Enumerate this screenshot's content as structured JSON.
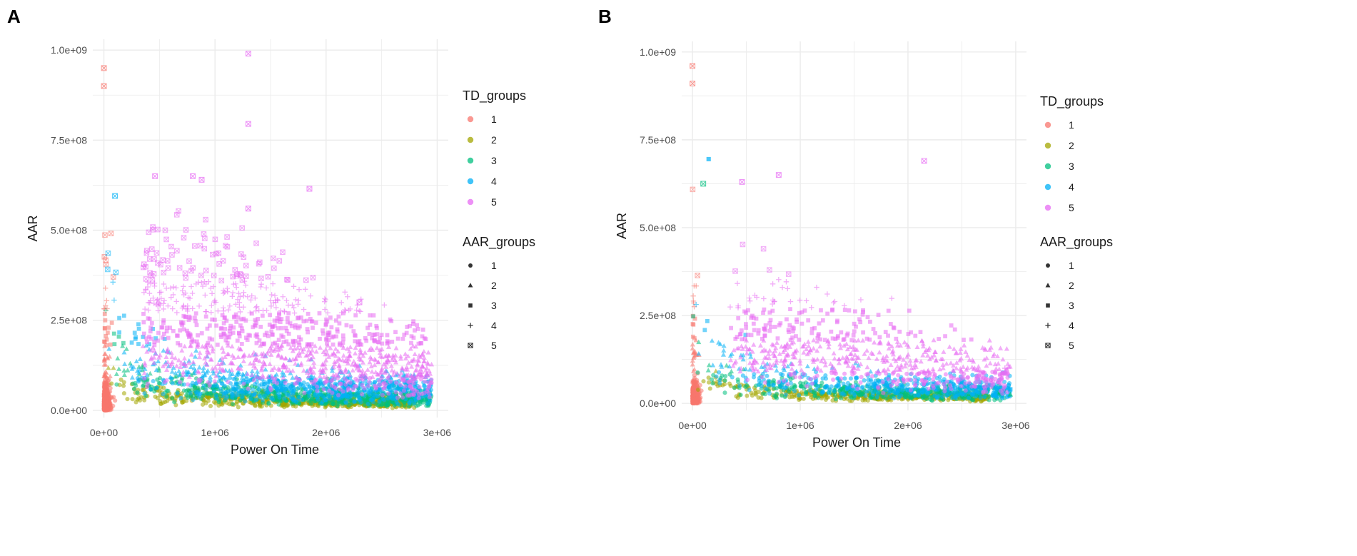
{
  "panels": [
    {
      "label": "A",
      "chart_data": {
        "type": "scatter",
        "title": "",
        "xlabel": "Power On Time",
        "ylabel": "AAR",
        "xlim": [
          -100000,
          3100000
        ],
        "ylim": [
          -20000000,
          1030000000
        ],
        "xticks": [
          0,
          1000000,
          2000000,
          3000000
        ],
        "xtick_labels": [
          "0e+00",
          "1e+06",
          "2e+06",
          "3e+06"
        ],
        "yticks": [
          0,
          250000000,
          500000000,
          750000000,
          1000000000
        ],
        "ytick_labels": [
          "0.0e+00",
          "2.5e+08",
          "5.0e+08",
          "7.5e+08",
          "1.0e+09"
        ],
        "grid": true,
        "legend_position": "right",
        "series_density": [
          {
            "td_group": "1",
            "x_max": 150000,
            "aar_median": 20000000,
            "point_count": 520
          },
          {
            "td_group": "2",
            "x_max": 2800000,
            "aar_median": 30000000,
            "point_count": 600
          },
          {
            "td_group": "3",
            "x_max": 2950000,
            "aar_median": 50000000,
            "point_count": 650
          },
          {
            "td_group": "4",
            "x_max": 2950000,
            "aar_median": 80000000,
            "point_count": 700
          },
          {
            "td_group": "5",
            "x_max": 2950000,
            "aar_median": 180000000,
            "point_count": 1100
          }
        ],
        "outliers": [
          {
            "x": 1300000,
            "y": 990000000,
            "td": "5",
            "aar": "5"
          },
          {
            "x": 1300000,
            "y": 795000000,
            "td": "5",
            "aar": "5"
          },
          {
            "x": 0,
            "y": 950000000,
            "td": "1",
            "aar": "5"
          },
          {
            "x": 0,
            "y": 900000000,
            "td": "1",
            "aar": "5"
          },
          {
            "x": 460000,
            "y": 650000000,
            "td": "5",
            "aar": "5"
          },
          {
            "x": 800000,
            "y": 650000000,
            "td": "5",
            "aar": "5"
          },
          {
            "x": 880000,
            "y": 640000000,
            "td": "5",
            "aar": "5"
          },
          {
            "x": 1850000,
            "y": 615000000,
            "td": "5",
            "aar": "5"
          },
          {
            "x": 100000,
            "y": 595000000,
            "td": "4",
            "aar": "5"
          },
          {
            "x": 1300000,
            "y": 560000000,
            "td": "5",
            "aar": "5"
          },
          {
            "x": 2300000,
            "y": 300000000,
            "td": "5",
            "aar": "5"
          },
          {
            "x": 2900000,
            "y": 30000000,
            "td": "3",
            "aar": "2"
          }
        ]
      }
    },
    {
      "label": "B",
      "chart_data": {
        "type": "scatter",
        "title": "",
        "xlabel": "Power On Time",
        "ylabel": "AAR",
        "xlim": [
          -100000,
          3100000
        ],
        "ylim": [
          -20000000,
          1030000000
        ],
        "xticks": [
          0,
          1000000,
          2000000,
          3000000
        ],
        "xtick_labels": [
          "0e+00",
          "1e+06",
          "2e+06",
          "3e+06"
        ],
        "yticks": [
          0,
          250000000,
          500000000,
          750000000,
          1000000000
        ],
        "ytick_labels": [
          "0.0e+00",
          "2.5e+08",
          "5.0e+08",
          "7.5e+08",
          "1.0e+09"
        ],
        "grid": true,
        "legend_position": "right",
        "series_density": [
          {
            "td_group": "1",
            "x_max": 150000,
            "aar_median": 15000000,
            "point_count": 420
          },
          {
            "td_group": "2",
            "x_max": 2750000,
            "aar_median": 25000000,
            "point_count": 420
          },
          {
            "td_group": "3",
            "x_max": 2900000,
            "aar_median": 40000000,
            "point_count": 420
          },
          {
            "td_group": "4",
            "x_max": 2950000,
            "aar_median": 60000000,
            "point_count": 460
          },
          {
            "td_group": "5",
            "x_max": 2950000,
            "aar_median": 130000000,
            "point_count": 650
          }
        ],
        "outliers": [
          {
            "x": 2150000,
            "y": 690000000,
            "td": "5",
            "aar": "5"
          },
          {
            "x": 150000,
            "y": 695000000,
            "td": "4",
            "aar": "3"
          },
          {
            "x": 0,
            "y": 960000000,
            "td": "1",
            "aar": "5"
          },
          {
            "x": 0,
            "y": 910000000,
            "td": "1",
            "aar": "5"
          },
          {
            "x": 800000,
            "y": 650000000,
            "td": "5",
            "aar": "5"
          },
          {
            "x": 460000,
            "y": 630000000,
            "td": "5",
            "aar": "5"
          },
          {
            "x": 100000,
            "y": 625000000,
            "td": "3",
            "aar": "5"
          },
          {
            "x": 2900000,
            "y": 100000000,
            "td": "5",
            "aar": "4"
          },
          {
            "x": 2950000,
            "y": 40000000,
            "td": "4",
            "aar": "3"
          },
          {
            "x": 2950000,
            "y": 25000000,
            "td": "3",
            "aar": "2"
          }
        ]
      }
    }
  ],
  "legend": {
    "td_title": "TD_groups",
    "aar_title": "AAR_groups",
    "levels": [
      "1",
      "2",
      "3",
      "4",
      "5"
    ]
  },
  "colors": {
    "td": [
      "#F8766D",
      "#A3A500",
      "#00BF7D",
      "#00B0F6",
      "#E76BF3"
    ],
    "grid": "#ebebeb",
    "tick_text": "#4d4d4d",
    "axis_title": "#1a1a1a",
    "legend_shape": "#333333"
  },
  "shape_names": [
    "circle",
    "triangle",
    "square",
    "plus",
    "square-cross"
  ]
}
